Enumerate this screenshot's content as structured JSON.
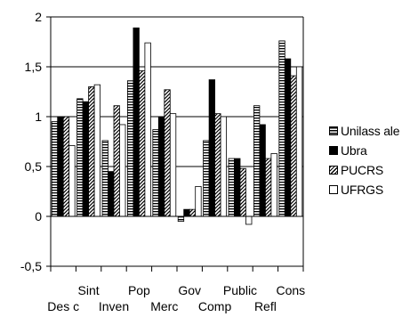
{
  "chart_data": {
    "type": "bar",
    "categories": [
      "Des c",
      "Sint",
      "Inven",
      "Pop",
      "Merc",
      "Gov",
      "Comp",
      "Public",
      "Refl",
      "Cons"
    ],
    "ylim": [
      -0.5,
      2
    ],
    "yticks": [
      "-0,5",
      "0",
      "0,5",
      "1",
      "1,5",
      "2"
    ],
    "ytick_values": [
      -0.5,
      0,
      0.5,
      1,
      1.5,
      2
    ],
    "grid": true,
    "legend_position": "right",
    "series": [
      {
        "name": "Unilass ale",
        "pattern": "stripes-horizontal",
        "color": "#000000",
        "values": [
          0.95,
          1.18,
          0.76,
          1.36,
          0.87,
          -0.05,
          0.76,
          0.58,
          1.11,
          1.76
        ]
      },
      {
        "name": "Ubra",
        "pattern": "solid",
        "color": "#000000",
        "values": [
          1.0,
          1.15,
          0.45,
          1.89,
          1.0,
          0.07,
          1.37,
          0.58,
          0.92,
          1.58
        ]
      },
      {
        "name": "PUCRS",
        "pattern": "stripes-diagonal",
        "color": "#000000",
        "values": [
          1.0,
          1.3,
          1.11,
          1.46,
          1.27,
          0.07,
          1.03,
          0.48,
          0.58,
          1.41
        ]
      },
      {
        "name": "UFRGS",
        "pattern": "empty",
        "color": "#ffffff",
        "values": [
          0.71,
          1.32,
          0.92,
          1.74,
          1.03,
          0.3,
          1.0,
          -0.08,
          0.63,
          1.5
        ]
      }
    ]
  }
}
